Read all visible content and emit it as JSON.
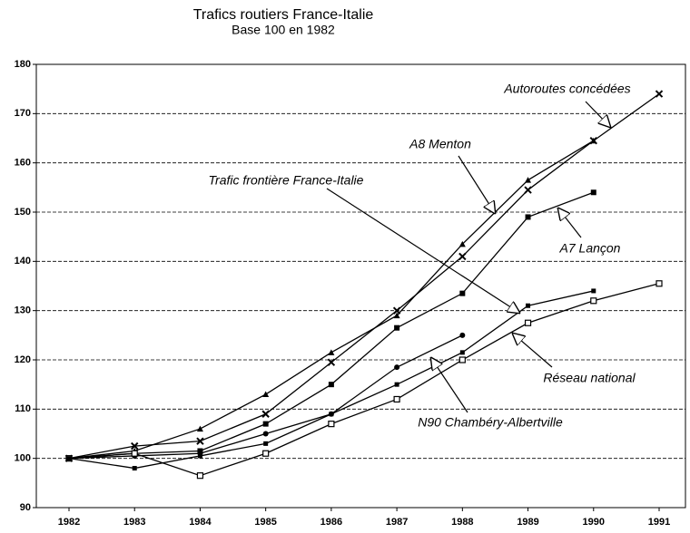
{
  "chart_data": {
    "type": "line",
    "title": "Trafics routiers France-Italie",
    "subtitle": "Base 100 en 1982",
    "categories": [
      "1982",
      "1983",
      "1984",
      "1985",
      "1986",
      "1987",
      "1988",
      "1989",
      "1990",
      "1991"
    ],
    "ylim": [
      90,
      180
    ],
    "yticks": [
      90,
      100,
      110,
      120,
      130,
      140,
      150,
      160,
      170,
      180
    ],
    "grid": true,
    "series": [
      {
        "name": "Autoroutes concédées",
        "color": "#000000",
        "marker": "x",
        "values": [
          100,
          102.5,
          103.5,
          109,
          119.5,
          130,
          141,
          154.5,
          164.5,
          174
        ]
      },
      {
        "name": "A8 Menton",
        "color": "#000000",
        "marker": "triangle",
        "values": [
          100,
          101.5,
          106,
          113,
          121.5,
          129,
          143.5,
          156.5,
          164.5,
          null
        ]
      },
      {
        "name": "Trafic frontière France-Italie",
        "color": "#000000",
        "marker": "circle",
        "values": [
          100,
          100.5,
          101,
          105,
          109,
          118.5,
          125,
          null,
          null,
          null
        ]
      },
      {
        "name": "A7 Lançon",
        "color": "#000000",
        "marker": "square",
        "values": [
          100,
          101,
          101.5,
          107,
          115,
          126.5,
          133.5,
          149,
          154,
          null
        ]
      },
      {
        "name": "Réseau national",
        "color": "#000000",
        "marker": "open-square",
        "values": [
          100,
          101,
          96.5,
          101,
          107,
          112,
          120,
          127.5,
          132,
          135.5
        ]
      },
      {
        "name": "N90 Chambéry-Albertville",
        "color": "#000000",
        "marker": "small-square",
        "values": [
          100,
          98,
          100.5,
          103,
          109,
          115,
          121.5,
          131,
          134,
          null
        ]
      }
    ]
  }
}
